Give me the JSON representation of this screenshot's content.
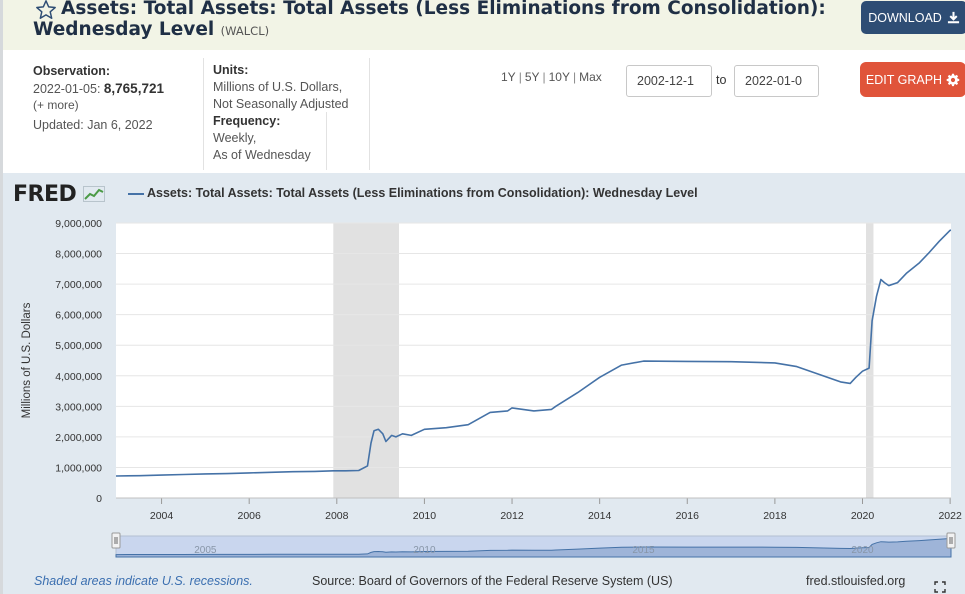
{
  "header": {
    "title_line1": "Assets: Total Assets: Total Assets (Less Eliminations from Consolidation):",
    "title_line2": "Wednesday Level",
    "series_id": "(WALCL)",
    "download_label": "DOWNLOAD",
    "icons": {
      "star": "star-icon",
      "download": "download-icon"
    }
  },
  "info": {
    "observation_label": "Observation:",
    "observation_date": "2022-01-05:",
    "observation_value": "8,765,721",
    "more_label": "(+ more)",
    "updated": "Updated: Jan 6, 2022",
    "units_label": "Units:",
    "units_line1": "Millions of U.S. Dollars,",
    "units_line2": "Not Seasonally Adjusted",
    "frequency_label": "Frequency:",
    "frequency_line1": "Weekly,",
    "frequency_line2": "As of Wednesday",
    "range_links": [
      "1Y",
      "5Y",
      "10Y",
      "Max"
    ],
    "range_sep": "|",
    "start_date": "2002-12-1",
    "end_date": "2022-01-0",
    "to_label": "to",
    "edit_label": "EDIT GRAPH",
    "icons": {
      "edit": "gear-icon"
    }
  },
  "chart": {
    "logo": "FRED",
    "legend": "Assets: Total Assets: Total Assets (Less Eliminations from Consolidation): Wednesday Level",
    "footer_note": "Shaded areas indicate U.S. recessions.",
    "footer_source": "Source: Board of Governors of the Federal Reserve System (US)",
    "footer_site": "fred.stlouisfed.org",
    "colors": {
      "line": "#4572a7",
      "recession": "#e1e1e1",
      "plot_bg": "#ffffff",
      "panel_bg": "#e1e9f0"
    }
  },
  "chart_data": {
    "type": "line",
    "title": "Assets: Total Assets: Total Assets (Less Eliminations from Consolidation): Wednesday Level",
    "xlabel": "",
    "ylabel": "Millions of U.S. Dollars",
    "xlim": [
      2002.96,
      2022.02
    ],
    "ylim": [
      0,
      9000000
    ],
    "yticks": [
      0,
      1000000,
      2000000,
      3000000,
      4000000,
      5000000,
      6000000,
      7000000,
      8000000,
      9000000
    ],
    "ytick_labels": [
      "0",
      "1,000,000",
      "2,000,000",
      "3,000,000",
      "4,000,000",
      "5,000,000",
      "6,000,000",
      "7,000,000",
      "8,000,000",
      "9,000,000"
    ],
    "xticks": [
      2004,
      2006,
      2008,
      2010,
      2012,
      2014,
      2016,
      2018,
      2020,
      2022
    ],
    "xtick_labels": [
      "2004",
      "2006",
      "2008",
      "2010",
      "2012",
      "2014",
      "2016",
      "2018",
      "2020",
      "2022"
    ],
    "navigator_labels": [
      {
        "x": 2005,
        "label": "2005"
      },
      {
        "x": 2010,
        "label": "2010"
      },
      {
        "x": 2015,
        "label": "2015"
      },
      {
        "x": 2020,
        "label": "2020"
      }
    ],
    "recessions": [
      [
        2007.92,
        2009.42
      ],
      [
        2020.08,
        2020.25
      ]
    ],
    "grid": true,
    "series": [
      {
        "name": "WALCL",
        "points": [
          [
            2002.96,
            720000
          ],
          [
            2003.5,
            730000
          ],
          [
            2004.0,
            750000
          ],
          [
            2004.5,
            770000
          ],
          [
            2005.0,
            790000
          ],
          [
            2005.5,
            800000
          ],
          [
            2006.0,
            820000
          ],
          [
            2006.5,
            840000
          ],
          [
            2007.0,
            860000
          ],
          [
            2007.5,
            870000
          ],
          [
            2007.92,
            890000
          ],
          [
            2008.2,
            890000
          ],
          [
            2008.5,
            900000
          ],
          [
            2008.7,
            1050000
          ],
          [
            2008.78,
            1800000
          ],
          [
            2008.85,
            2200000
          ],
          [
            2008.95,
            2250000
          ],
          [
            2009.05,
            2100000
          ],
          [
            2009.12,
            1850000
          ],
          [
            2009.25,
            2050000
          ],
          [
            2009.35,
            2000000
          ],
          [
            2009.5,
            2100000
          ],
          [
            2009.7,
            2050000
          ],
          [
            2010.0,
            2250000
          ],
          [
            2010.5,
            2300000
          ],
          [
            2011.0,
            2400000
          ],
          [
            2011.5,
            2800000
          ],
          [
            2011.9,
            2850000
          ],
          [
            2012.0,
            2950000
          ],
          [
            2012.5,
            2850000
          ],
          [
            2012.9,
            2900000
          ],
          [
            2013.0,
            3000000
          ],
          [
            2013.5,
            3450000
          ],
          [
            2014.0,
            3950000
          ],
          [
            2014.5,
            4350000
          ],
          [
            2015.0,
            4480000
          ],
          [
            2016.0,
            4470000
          ],
          [
            2017.0,
            4460000
          ],
          [
            2018.0,
            4420000
          ],
          [
            2018.5,
            4300000
          ],
          [
            2019.0,
            4050000
          ],
          [
            2019.5,
            3800000
          ],
          [
            2019.72,
            3750000
          ],
          [
            2019.85,
            3950000
          ],
          [
            2020.0,
            4150000
          ],
          [
            2020.15,
            4250000
          ],
          [
            2020.22,
            5800000
          ],
          [
            2020.32,
            6600000
          ],
          [
            2020.42,
            7150000
          ],
          [
            2020.5,
            7050000
          ],
          [
            2020.6,
            6950000
          ],
          [
            2020.8,
            7050000
          ],
          [
            2021.0,
            7350000
          ],
          [
            2021.3,
            7700000
          ],
          [
            2021.5,
            8000000
          ],
          [
            2021.75,
            8400000
          ],
          [
            2022.0,
            8760000
          ],
          [
            2022.02,
            8765721
          ]
        ]
      }
    ]
  }
}
